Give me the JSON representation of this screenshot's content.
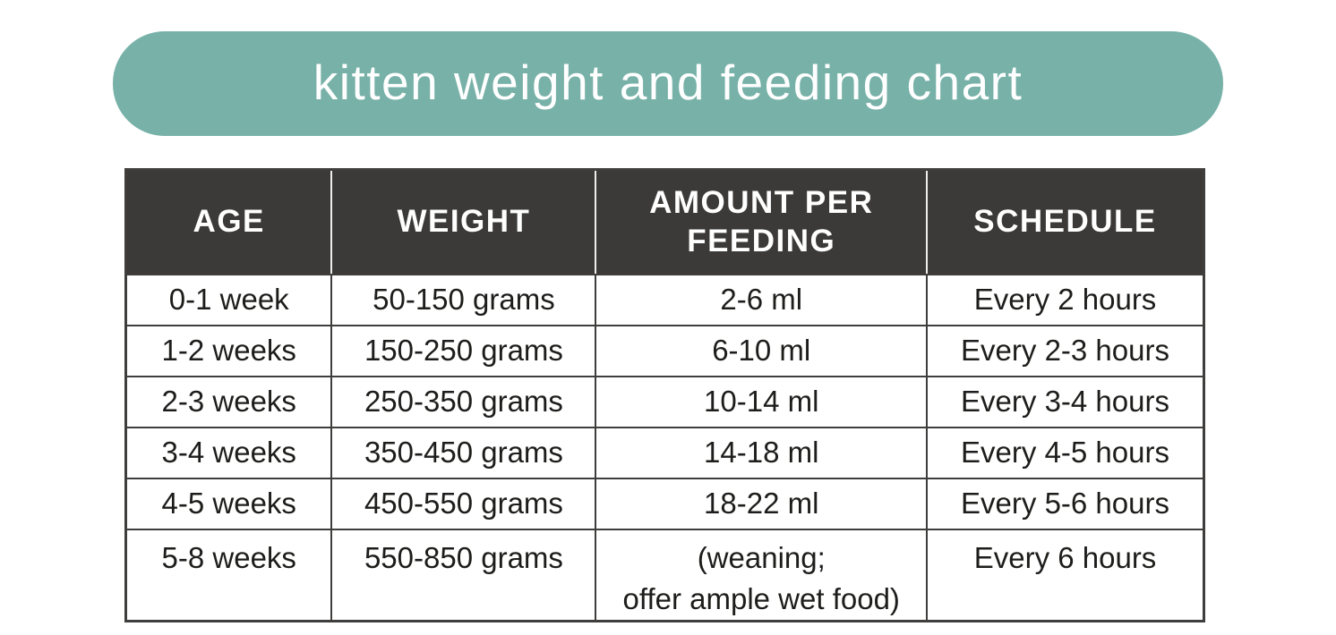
{
  "banner": {
    "title": "kitten weight and feeding chart",
    "bg_color": "#77b1a8",
    "text_color": "#ffffff"
  },
  "chart_data": {
    "type": "table",
    "title": "kitten weight and feeding chart",
    "columns": [
      "AGE",
      "WEIGHT",
      "AMOUNT PER FEEDING",
      "SCHEDULE"
    ],
    "rows": [
      [
        "0-1 week",
        "50-150 grams",
        "2-6 ml",
        "Every 2 hours"
      ],
      [
        "1-2 weeks",
        "150-250 grams",
        "6-10 ml",
        "Every 2-3 hours"
      ],
      [
        "2-3 weeks",
        "250-350 grams",
        "10-14 ml",
        "Every 3-4 hours"
      ],
      [
        "3-4 weeks",
        "350-450 grams",
        "14-18 ml",
        "Every 4-5 hours"
      ],
      [
        "4-5 weeks",
        "450-550 grams",
        "18-22 ml",
        "Every 5-6 hours"
      ],
      [
        "5-8 weeks",
        "550-850 grams",
        "(weaning;\noffer ample wet food)",
        "Every 6 hours"
      ]
    ],
    "layout": {
      "header_bg": "#3b3a38",
      "header_text_color": "#ffffff",
      "border_color": "#3f3e3d",
      "grid": true,
      "legend": false
    }
  }
}
